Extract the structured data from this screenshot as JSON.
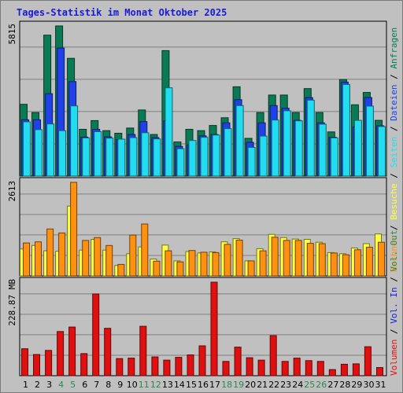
{
  "title": "Tages-Statistik im Monat Oktober 2025",
  "colors": {
    "anfragen": "#0a7a55",
    "dateien": "#2040e8",
    "seiten": "#22ddf0",
    "besuche": "#ffff44",
    "rechner": "#ff9010",
    "volumen": "#e01010",
    "weekend_label": "#2a8a4a",
    "weekday_label": "#000000"
  },
  "chart_data": [
    {
      "type": "bar",
      "name": "hits-files-pages",
      "title": "",
      "categories": [
        "1",
        "2",
        "3",
        "4",
        "5",
        "6",
        "7",
        "8",
        "9",
        "10",
        "11",
        "12",
        "13",
        "14",
        "15",
        "16",
        "17",
        "18",
        "19",
        "20",
        "21",
        "22",
        "23",
        "24",
        "25",
        "26",
        "27",
        "28",
        "29",
        "30",
        "31"
      ],
      "y_max_label": "5815",
      "ylim": [
        0,
        5815
      ],
      "series": [
        {
          "name": "Anfragen",
          "values": [
            2780,
            2460,
            5460,
            5815,
            4560,
            1810,
            2150,
            1760,
            1660,
            1860,
            2560,
            1610,
            4860,
            1320,
            1810,
            1760,
            1960,
            2260,
            3460,
            1460,
            2460,
            3140,
            3140,
            2460,
            3390,
            2460,
            1710,
            3740,
            2760,
            3240,
            2160
          ]
        },
        {
          "name": "Dateien",
          "values": [
            2180,
            2180,
            3190,
            4960,
            3660,
            1510,
            1810,
            1520,
            1410,
            1610,
            2110,
            1490,
            2140,
            1150,
            1210,
            1560,
            1610,
            2060,
            2960,
            1310,
            2060,
            2730,
            2630,
            2160,
            3040,
            2060,
            1500,
            3640,
            1910,
            3040,
            1950
          ]
        },
        {
          "name": "Seiten",
          "values": [
            2100,
            1800,
            2020,
            1760,
            2720,
            1480,
            1720,
            1470,
            1430,
            1490,
            1680,
            1440,
            3420,
            1060,
            1380,
            1500,
            1590,
            1840,
            2730,
            1110,
            1550,
            2170,
            2530,
            2140,
            2940,
            2010,
            1480,
            3550,
            2160,
            2710,
            1920
          ]
        }
      ],
      "legend": [
        "Anfragen",
        "Dateien",
        "Seiten"
      ]
    },
    {
      "type": "bar",
      "name": "visits-hosts",
      "title": "",
      "categories": [
        "1",
        "2",
        "3",
        "4",
        "5",
        "6",
        "7",
        "8",
        "9",
        "10",
        "11",
        "12",
        "13",
        "14",
        "15",
        "16",
        "17",
        "18",
        "19",
        "20",
        "21",
        "22",
        "23",
        "24",
        "25",
        "26",
        "27",
        "28",
        "29",
        "30",
        "31"
      ],
      "y_max_label": "2613",
      "ylim": [
        0,
        2613
      ],
      "series": [
        {
          "name": "Besuche",
          "values": [
            750,
            850,
            700,
            690,
            1950,
            720,
            1020,
            720,
            290,
            620,
            810,
            470,
            860,
            420,
            680,
            640,
            670,
            950,
            1040,
            420,
            760,
            1160,
            1070,
            1030,
            1020,
            940,
            650,
            620,
            780,
            900,
            1170
          ]
        },
        {
          "name": "Rechner",
          "values": [
            920,
            950,
            1310,
            1200,
            2613,
            990,
            1070,
            850,
            320,
            1140,
            1450,
            410,
            700,
            390,
            710,
            660,
            650,
            880,
            1000,
            420,
            700,
            1080,
            990,
            990,
            910,
            900,
            640,
            590,
            730,
            800,
            940
          ]
        }
      ],
      "legend": [
        "Besuche",
        "Rechner"
      ]
    },
    {
      "type": "bar",
      "name": "volume",
      "title": "",
      "categories": [
        "1",
        "2",
        "3",
        "4",
        "5",
        "6",
        "7",
        "8",
        "9",
        "10",
        "11",
        "12",
        "13",
        "14",
        "15",
        "16",
        "17",
        "18",
        "19",
        "20",
        "21",
        "22",
        "23",
        "24",
        "25",
        "26",
        "27",
        "28",
        "29",
        "30",
        "31"
      ],
      "y_max_label": "228.87 MB",
      "ylim": [
        0,
        228.87
      ],
      "series": [
        {
          "name": "Volumen",
          "values": [
            66,
            52,
            62,
            108,
            119,
            54,
            200,
            116,
            42,
            43,
            121,
            46,
            38,
            45,
            51,
            73,
            228.87,
            35,
            70,
            44,
            38,
            98,
            35,
            43,
            37,
            35,
            15,
            28,
            29,
            71,
            20
          ]
        }
      ],
      "legend": [
        "Volumen",
        "Vol. In",
        "Vol. Out"
      ]
    }
  ],
  "weekend_days": [
    4,
    5,
    11,
    12,
    18,
    19,
    25,
    26
  ],
  "right_labels": {
    "top": [
      {
        "text": "Anfragen",
        "key": "anfragen"
      },
      {
        "text": "Dateien",
        "key": "dateien"
      },
      {
        "text": "Seiten",
        "key": "seiten"
      },
      {
        "text": "Besuche",
        "key": "besuche"
      },
      {
        "text": "Rechner",
        "key": "rechner"
      }
    ],
    "sep": "/",
    "bottom": [
      {
        "text": "Vol. Out",
        "key": "vol_out",
        "color": "#2a8a4a"
      },
      {
        "text": "Vol. In",
        "key": "vol_in",
        "color": "#1a1ad6"
      },
      {
        "text": "Volumen",
        "key": "volumen",
        "color": "#e01010"
      }
    ]
  }
}
